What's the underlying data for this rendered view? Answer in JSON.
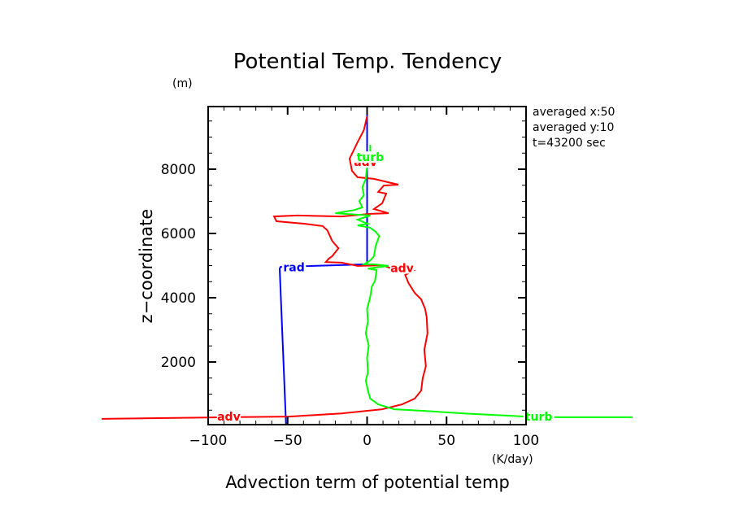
{
  "chart_data": {
    "type": "line",
    "title": "Potential Temp. Tendency",
    "xlabel": "Advection term of potential temp",
    "ylabel": "z−coordinate",
    "x_unit": "(K/day)",
    "y_unit": "(m)",
    "xlim": [
      -100,
      100
    ],
    "ylim": [
      0,
      9900
    ],
    "x_ticks": [
      -100,
      -50,
      0,
      50,
      100
    ],
    "x_tick_labels": [
      "−100",
      "−50",
      "0",
      "50",
      "100"
    ],
    "y_ticks": [
      2000,
      4000,
      6000,
      8000
    ],
    "y_tick_labels": [
      "2000",
      "4000",
      "6000",
      "8000"
    ],
    "grid": false,
    "annotations": [
      "averaged  x:50",
      "averaged  y:10",
      "t=43200 sec"
    ],
    "series": [
      {
        "name": "rad",
        "color": "#0000ff",
        "label_text": "rad",
        "points": [
          [
            -51,
            50
          ],
          [
            -55,
            4900
          ],
          [
            -54.5,
            4960
          ],
          [
            0,
            5040
          ],
          [
            0,
            9950
          ]
        ]
      },
      {
        "name": "adv",
        "color": "#ff0000",
        "label_text": "adv",
        "points": [
          [
            -167,
            230
          ],
          [
            -87.7,
            280
          ],
          [
            -49,
            300
          ],
          [
            -16,
            400
          ],
          [
            9.5,
            530
          ],
          [
            22,
            680
          ],
          [
            30,
            860
          ],
          [
            34,
            1110
          ],
          [
            35,
            1490
          ],
          [
            37,
            1870
          ],
          [
            36,
            2380
          ],
          [
            38,
            2890
          ],
          [
            37.5,
            3390
          ],
          [
            36.5,
            3650
          ],
          [
            34,
            3950
          ],
          [
            30,
            4150
          ],
          [
            26,
            4460
          ],
          [
            24,
            4710
          ],
          [
            29,
            4840
          ],
          [
            15.6,
            4910
          ],
          [
            9.5,
            5010
          ],
          [
            -6,
            4990
          ],
          [
            -16,
            5090
          ],
          [
            -26,
            5110
          ],
          [
            -24,
            5220
          ],
          [
            -22,
            5290
          ],
          [
            -18,
            5540
          ],
          [
            -22,
            5770
          ],
          [
            -25,
            6100
          ],
          [
            -28,
            6230
          ],
          [
            -39,
            6300
          ],
          [
            -57,
            6380
          ],
          [
            -58.5,
            6530
          ],
          [
            -44,
            6560
          ],
          [
            -16,
            6530
          ],
          [
            2,
            6610
          ],
          [
            13.5,
            6630
          ],
          [
            4.3,
            6760
          ],
          [
            9.5,
            6940
          ],
          [
            12,
            7240
          ],
          [
            7,
            7290
          ],
          [
            10.5,
            7490
          ],
          [
            19.7,
            7520
          ],
          [
            4.3,
            7700
          ],
          [
            -6,
            7750
          ],
          [
            -9.5,
            7950
          ],
          [
            -11,
            8330
          ],
          [
            -6,
            8840
          ],
          [
            -2,
            9220
          ],
          [
            0,
            9650
          ]
        ]
      },
      {
        "name": "turb",
        "color": "#00ff00",
        "label_text": "turb",
        "points": [
          [
            167,
            280
          ],
          [
            121,
            280
          ],
          [
            100,
            300
          ],
          [
            81,
            350
          ],
          [
            60.6,
            400
          ],
          [
            35,
            480
          ],
          [
            17,
            530
          ],
          [
            7,
            680
          ],
          [
            2,
            860
          ],
          [
            0.5,
            1110
          ],
          [
            -0.8,
            1420
          ],
          [
            0.5,
            1670
          ],
          [
            0,
            2130
          ],
          [
            1,
            2510
          ],
          [
            -0.8,
            2890
          ],
          [
            0.5,
            3270
          ],
          [
            0,
            3650
          ],
          [
            2,
            4030
          ],
          [
            3,
            4350
          ],
          [
            5,
            4530
          ],
          [
            6,
            4860
          ],
          [
            0.5,
            4910
          ],
          [
            13.5,
            4990
          ],
          [
            4.3,
            5040
          ],
          [
            -2,
            5040
          ],
          [
            2,
            5160
          ],
          [
            4.3,
            5290
          ],
          [
            5.4,
            5620
          ],
          [
            7.6,
            5920
          ],
          [
            5.4,
            6050
          ],
          [
            2,
            6180
          ],
          [
            -6,
            6250
          ],
          [
            0.5,
            6300
          ],
          [
            -6,
            6430
          ],
          [
            2,
            6560
          ],
          [
            -20,
            6630
          ],
          [
            -8,
            6730
          ],
          [
            -3,
            6810
          ],
          [
            -4.9,
            7010
          ],
          [
            -2,
            7190
          ],
          [
            -3,
            7440
          ],
          [
            -0.8,
            7700
          ],
          [
            0,
            8080
          ],
          [
            2,
            8460
          ],
          [
            2,
            8760
          ]
        ]
      }
    ],
    "curve_labels": [
      {
        "series": "adv",
        "text": "adv",
        "x": -87,
        "z": 280
      },
      {
        "series": "adv",
        "text": "adv",
        "x": 22,
        "z": 4900
      },
      {
        "series": "adv",
        "text": "adv",
        "x": -1,
        "z": 8200
      },
      {
        "series": "turb",
        "text": "turb",
        "x": 108,
        "z": 280
      },
      {
        "series": "turb",
        "text": "turb",
        "x": 2,
        "z": 8350
      },
      {
        "series": "rad",
        "text": "rad",
        "x": -46,
        "z": 4930
      }
    ]
  }
}
